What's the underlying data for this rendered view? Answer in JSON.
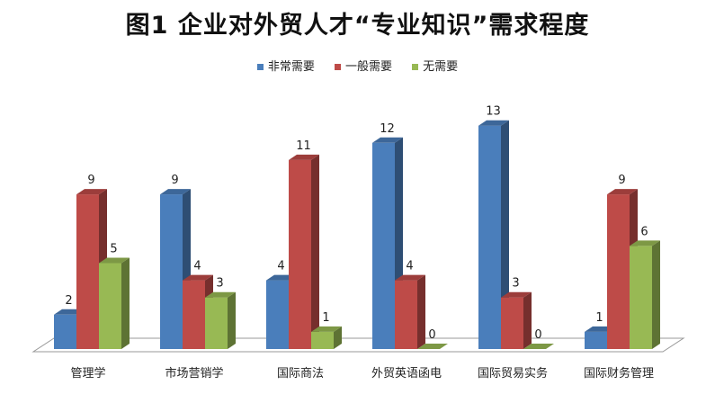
{
  "title": "图1 企业对外贸人才“专业知识”需求程度",
  "chart_data": {
    "type": "bar",
    "title": "图1 企业对外贸人才“专业知识”需求程度",
    "categories": [
      "管理学",
      "市场营销学",
      "国际商法",
      "外贸英语函电",
      "国际贸易实务",
      "国际财务管理"
    ],
    "series": [
      {
        "name": "非常需要",
        "values": [
          2,
          9,
          4,
          12,
          13,
          1
        ],
        "color": "#4a7ebb"
      },
      {
        "name": "一般需要",
        "values": [
          9,
          4,
          11,
          4,
          3,
          9
        ],
        "color": "#be4b48"
      },
      {
        "name": "无需要",
        "values": [
          5,
          3,
          1,
          0,
          0,
          6
        ],
        "color": "#98b954"
      }
    ],
    "ylim": [
      0,
      13
    ],
    "legend_position": "top",
    "grid": false,
    "three_d": true
  }
}
